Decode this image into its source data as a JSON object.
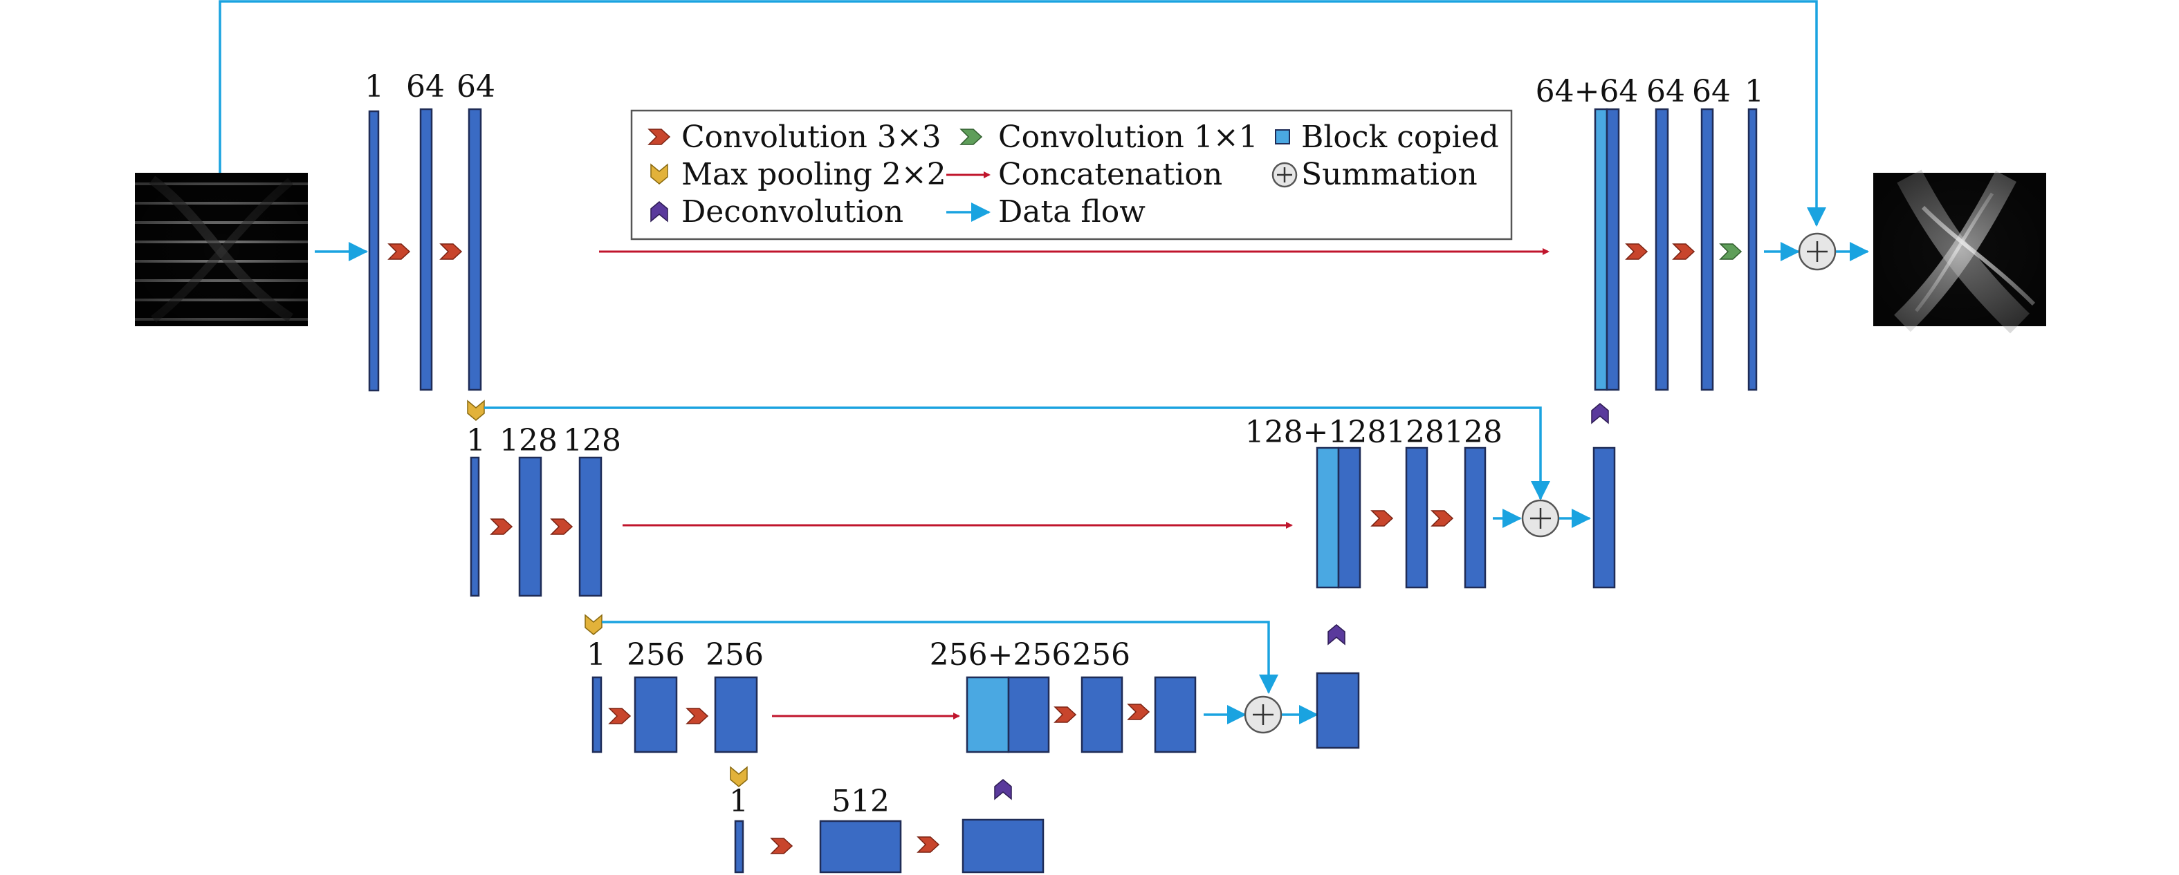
{
  "legend": {
    "conv3": "Convolution 3×3",
    "conv1": "Convolution 1×1",
    "copied": "Block copied",
    "maxpool": "Max pooling 2×2",
    "concat": "Concatenation",
    "summation": "Summation",
    "deconv": "Deconvolution",
    "dataflow": "Data flow"
  },
  "level1": {
    "l_in": "1",
    "l_a": "64",
    "l_b": "64",
    "l_cat": "64+64",
    "l_c": "64",
    "l_d": "64",
    "l_out": "1"
  },
  "level2": {
    "l_in": "1",
    "l_a": "128",
    "l_b": "128",
    "l_cat": "128+128",
    "l_c": "128",
    "l_d": "128"
  },
  "level3": {
    "l_in": "1",
    "l_a": "256",
    "l_b": "256",
    "l_cat": "256+256",
    "l_c": "256"
  },
  "level4": {
    "l_in": "1",
    "l_a": "512"
  },
  "colors": {
    "block": "#3a6bc4",
    "copied_block": "#4aa8e2",
    "conv3_arrow": "#c8452c",
    "conv1_arrow": "#5f9e5a",
    "maxpool": "#e2b23a",
    "deconv": "#5a3a9c",
    "concatenation": "#c0152c",
    "data_flow": "#1aa3e0"
  }
}
